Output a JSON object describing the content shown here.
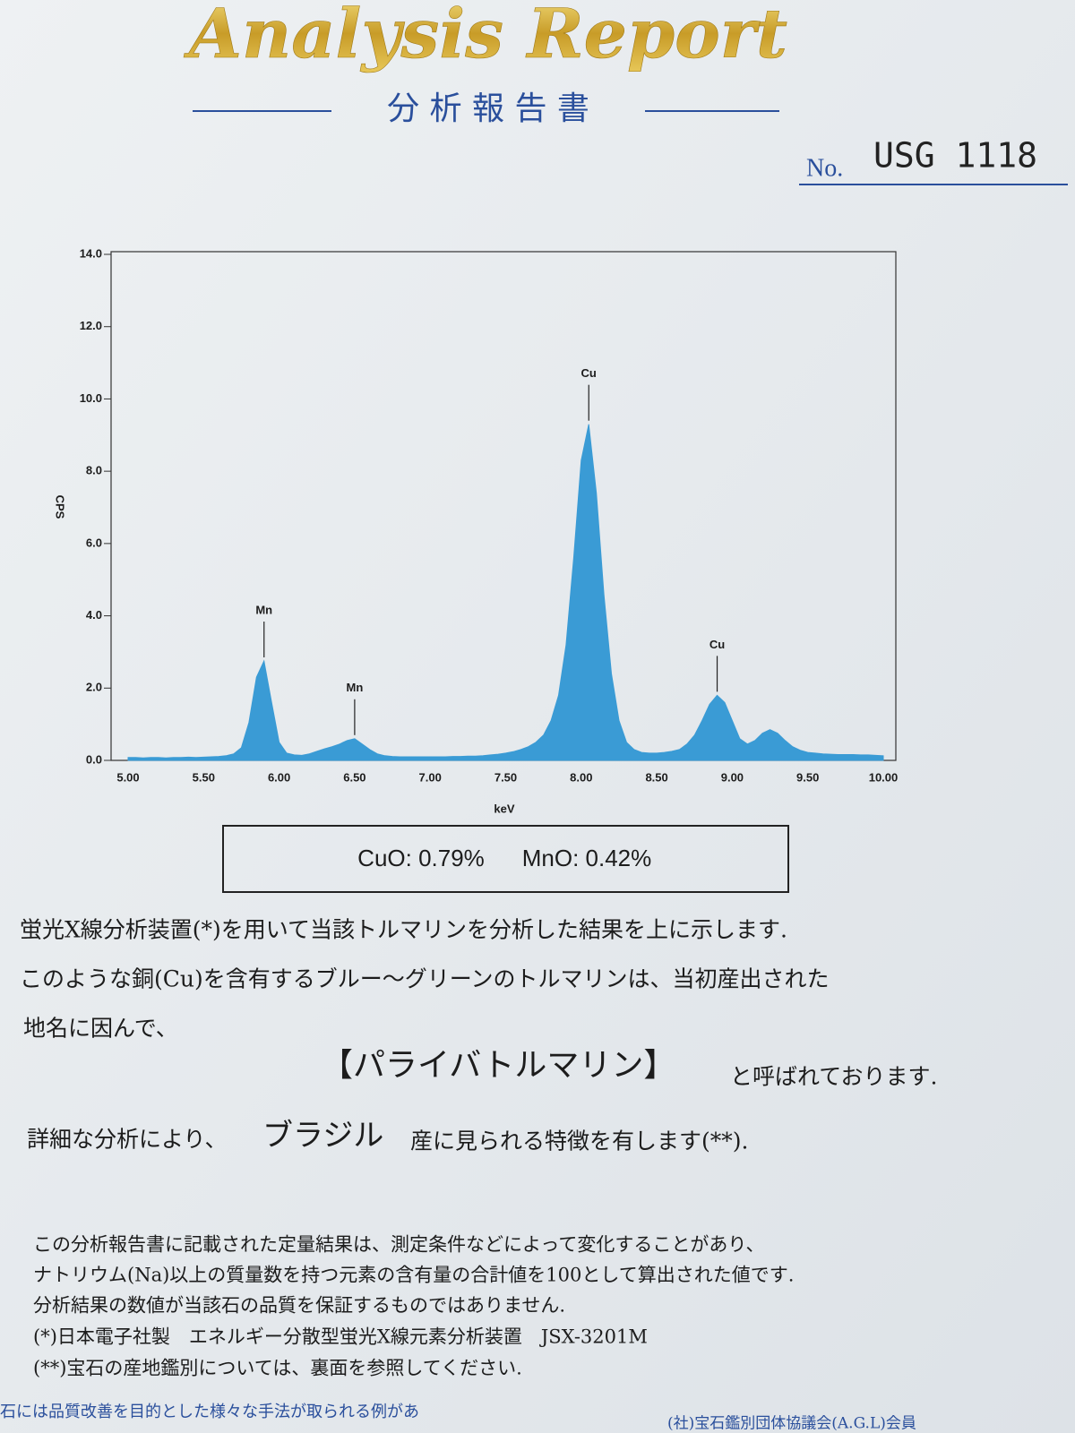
{
  "header": {
    "title": "Analysis Report",
    "subtitle": "分 析 報 告 書",
    "number_label": "No.",
    "number": "USG 1118"
  },
  "chart_data": {
    "type": "area",
    "x_label": "keV",
    "y_label": "CPS",
    "xlim": [
      5,
      10
    ],
    "ylim": [
      0,
      14
    ],
    "xticks": [
      {
        "value": 5,
        "label": "5.00"
      },
      {
        "value": 5.5,
        "label": "5.50"
      },
      {
        "value": 6,
        "label": "6.00"
      },
      {
        "value": 6.5,
        "label": "6.50"
      },
      {
        "value": 7,
        "label": "7.00"
      },
      {
        "value": 7.5,
        "label": "7.50"
      },
      {
        "value": 8,
        "label": "8.00"
      },
      {
        "value": 8.5,
        "label": "8.50"
      },
      {
        "value": 9,
        "label": "9.00"
      },
      {
        "value": 9.5,
        "label": "9.50"
      },
      {
        "value": 10,
        "label": "10.00"
      }
    ],
    "yticks": [
      {
        "value": 0,
        "label": "0.0"
      },
      {
        "value": 2,
        "label": "2.0"
      },
      {
        "value": 4,
        "label": "4.0"
      },
      {
        "value": 6,
        "label": "6.0"
      },
      {
        "value": 8,
        "label": "8.0"
      },
      {
        "value": 10,
        "label": "10.0"
      },
      {
        "value": 12,
        "label": "12.0"
      },
      {
        "value": 14,
        "label": "14.0"
      }
    ],
    "color": "#3a9bd5",
    "x": [
      5.0,
      5.05,
      5.1,
      5.15,
      5.2,
      5.25,
      5.3,
      5.35,
      5.4,
      5.45,
      5.5,
      5.55,
      5.6,
      5.65,
      5.7,
      5.75,
      5.8,
      5.85,
      5.9,
      5.95,
      6.0,
      6.05,
      6.1,
      6.15,
      6.2,
      6.25,
      6.3,
      6.35,
      6.4,
      6.45,
      6.5,
      6.55,
      6.6,
      6.65,
      6.7,
      6.75,
      6.8,
      6.85,
      6.9,
      6.95,
      7.0,
      7.05,
      7.1,
      7.15,
      7.2,
      7.25,
      7.3,
      7.35,
      7.4,
      7.45,
      7.5,
      7.55,
      7.6,
      7.65,
      7.7,
      7.75,
      7.8,
      7.85,
      7.9,
      7.95,
      8.0,
      8.05,
      8.1,
      8.15,
      8.2,
      8.25,
      8.3,
      8.35,
      8.4,
      8.45,
      8.5,
      8.55,
      8.6,
      8.65,
      8.7,
      8.75,
      8.8,
      8.85,
      8.9,
      8.95,
      9.0,
      9.05,
      9.1,
      9.15,
      9.2,
      9.25,
      9.3,
      9.35,
      9.4,
      9.45,
      9.5,
      9.55,
      9.6,
      9.65,
      9.7,
      9.75,
      9.8,
      9.85,
      9.9,
      9.95,
      10.0
    ],
    "values": [
      0.08,
      0.08,
      0.07,
      0.08,
      0.08,
      0.07,
      0.08,
      0.08,
      0.09,
      0.08,
      0.09,
      0.1,
      0.11,
      0.13,
      0.18,
      0.35,
      1.05,
      2.3,
      2.75,
      1.6,
      0.5,
      0.2,
      0.15,
      0.14,
      0.18,
      0.25,
      0.32,
      0.38,
      0.45,
      0.55,
      0.6,
      0.45,
      0.3,
      0.18,
      0.13,
      0.11,
      0.1,
      0.1,
      0.1,
      0.1,
      0.1,
      0.1,
      0.1,
      0.11,
      0.11,
      0.12,
      0.12,
      0.13,
      0.15,
      0.17,
      0.2,
      0.24,
      0.3,
      0.38,
      0.5,
      0.7,
      1.1,
      1.8,
      3.2,
      5.6,
      8.3,
      9.3,
      7.4,
      4.6,
      2.4,
      1.1,
      0.5,
      0.3,
      0.22,
      0.2,
      0.2,
      0.22,
      0.25,
      0.3,
      0.45,
      0.7,
      1.1,
      1.55,
      1.8,
      1.6,
      1.1,
      0.6,
      0.45,
      0.55,
      0.75,
      0.85,
      0.75,
      0.55,
      0.38,
      0.28,
      0.22,
      0.2,
      0.18,
      0.17,
      0.16,
      0.16,
      0.16,
      0.15,
      0.15,
      0.14,
      0.13
    ],
    "annotations": [
      {
        "text": "Mn",
        "x": 5.9
      },
      {
        "text": "Mn",
        "x": 6.5
      },
      {
        "text": "Cu",
        "x": 8.05
      },
      {
        "text": "Cu",
        "x": 8.9
      }
    ]
  },
  "result": {
    "cuo": "CuO: 0.79%",
    "mno": "MnO: 0.42%"
  },
  "body": {
    "line1": "蛍光X線分析装置(*)を用いて当該トルマリンを分析した結果を上に示します.",
    "line2": "このような銅(Cu)を含有するブルー～グリーンのトルマリンは、当初産出された",
    "line3": "地名に因んで、",
    "name": "【パライバトルマリン】",
    "name_suffix": "と呼ばれております.",
    "origin_prefix": "詳細な分析により、",
    "origin": "ブラジル",
    "origin_suffix": "産に見られる特徴を有します(**)."
  },
  "notes": [
    "この分析報告書に記載された定量結果は、測定条件などによって変化することがあり、",
    "ナトリウム(Na)以上の質量数を持つ元素の含有量の合計値を100として算出された値です.",
    "分析結果の数値が当該石の品質を保証するものではありません.",
    "(*)日本電子社製　エネルギー分散型蛍光X線元素分析装置　JSX-3201M",
    "(**)宝石の産地鑑別については、裏面を参照してください."
  ],
  "footer": {
    "left": "石には品質改善を目的とした様々な手法が取られる例があ",
    "right": "(社)宝石鑑別団体協議会(A.G.L)会員"
  }
}
